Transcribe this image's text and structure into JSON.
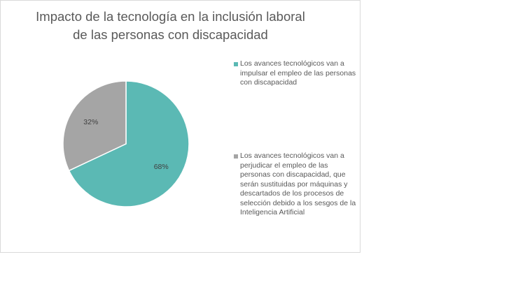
{
  "chart_data": {
    "type": "pie",
    "title_lines": [
      "Impacto de la tecnología en la inclusión laboral",
      "de las personas con discapacidad"
    ],
    "slices": [
      {
        "label": "Los avances tecnológicos van a impulsar el empleo de las personas con discapacidad",
        "value": 68,
        "data_label": "68%",
        "color": "#5bb9b4"
      },
      {
        "label": "Los avances tecnológicos van a perjudicar el empleo de las personas con discapacidad, que serán sustituidas por máquinas y descartados de los procesos de selección debido a los sesgos de la Inteligencia Artificial",
        "value": 32,
        "data_label": "32%",
        "color": "#a5a5a5"
      }
    ],
    "start_angle_deg": 0,
    "direction": "clockwise",
    "legend_position": "right"
  }
}
